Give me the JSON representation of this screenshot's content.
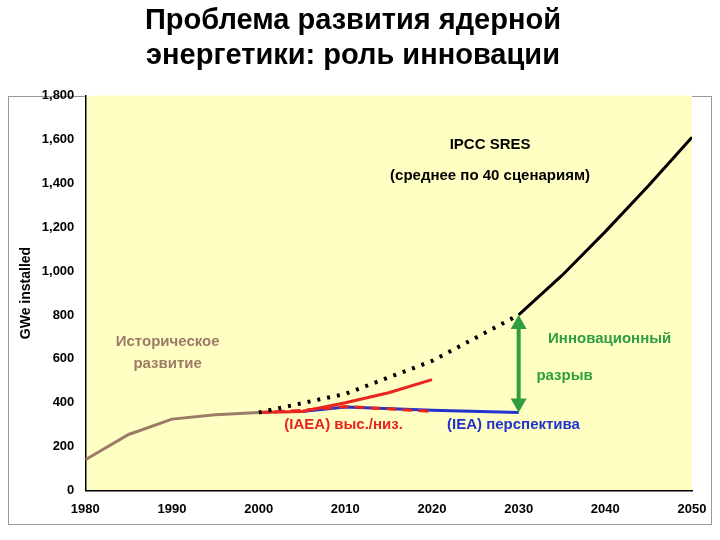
{
  "chart_data": {
    "type": "line",
    "title": [
      "Проблема развития ядерной",
      "энергетики: роль инновации"
    ],
    "y_label": "GWe installed",
    "xlim": [
      1980,
      2050
    ],
    "xticks": [
      1980,
      1990,
      2000,
      2010,
      2020,
      2030,
      2040,
      2050
    ],
    "ylim": [
      0,
      1800
    ],
    "yticks": [
      0,
      200,
      400,
      600,
      800,
      {
        "value": 1000,
        "label": "1,000"
      },
      {
        "value": 1200,
        "label": "1,200"
      },
      {
        "value": 1400,
        "label": "1,400"
      },
      {
        "value": 1600,
        "label": "1,600"
      },
      {
        "value": 1800,
        "label": "1,800"
      }
    ],
    "grid": false,
    "series": [
      {
        "name": "Историческое развитие",
        "color": "#9c7c66",
        "line_style": "solid",
        "x": [
          1980,
          1985,
          1990,
          1995,
          2000
        ],
        "values": [
          140,
          255,
          325,
          345,
          355
        ]
      },
      {
        "name": "IPCC SRES",
        "color": "#000000",
        "line_style": "dotted",
        "x": [
          2000,
          2010,
          2020,
          2030
        ],
        "values": [
          355,
          440,
          590,
          800
        ]
      },
      {
        "name": "IPCC SRES",
        "color": "#000000",
        "line_style": "solid",
        "x": [
          2030,
          2035,
          2040,
          2045,
          2050
        ],
        "values": [
          800,
          980,
          1180,
          1390,
          1610
        ]
      },
      {
        "name": "(IAEA) выс./низ.",
        "color": "#e8251f",
        "line_style": "solid",
        "x": [
          2000,
          2005,
          2010,
          2015,
          2020
        ],
        "values": [
          355,
          360,
          400,
          445,
          505
        ]
      },
      {
        "name": "(IAEA) выс./низ.",
        "color": "#e8251f",
        "line_style": "dashed",
        "x": [
          2000,
          2005,
          2010,
          2015,
          2020
        ],
        "values": [
          355,
          365,
          382,
          372,
          360
        ]
      },
      {
        "name": "(IEA) перспектива",
        "color": "#2233cc",
        "line_style": "solid",
        "x": [
          2005,
          2010,
          2020,
          2030
        ],
        "values": [
          360,
          380,
          365,
          355
        ]
      }
    ],
    "annotations": [
      {
        "text": "IPCC SRES",
        "color": "#000000"
      },
      {
        "text": "(среднее по 40 сценариям)",
        "color": "#000000"
      },
      {
        "text": "Историческое",
        "color": "#9c7c66"
      },
      {
        "text": "развитие",
        "color": "#9c7c66"
      },
      {
        "text": "(IAEA) выс./низ.",
        "color": "#e8251f"
      },
      {
        "text": "(IEA) перспектива",
        "color": "#2233cc"
      },
      {
        "text": "Инновационный",
        "color": "#2e9e3e"
      },
      {
        "text": "разрыв",
        "color": "#2e9e3e"
      }
    ],
    "arrow": {
      "x": 2030,
      "y_from": 355,
      "y_to": 800,
      "color": "#2e9e3e"
    }
  }
}
